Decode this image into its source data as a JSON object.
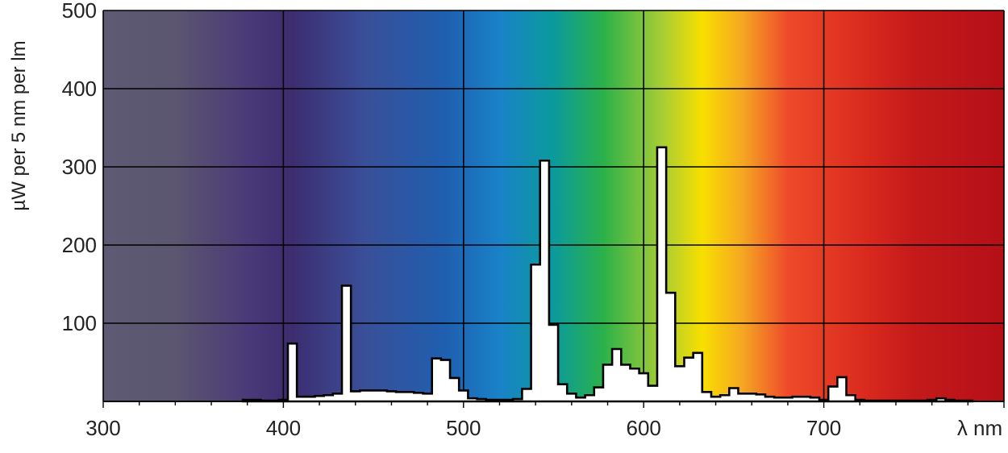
{
  "chart_data": {
    "type": "area",
    "title": "",
    "xlabel": "λ nm",
    "ylabel": "µW per 5 nm per lm",
    "xlim": [
      300,
      800
    ],
    "ylim": [
      0,
      500
    ],
    "x_ticks": [
      "300",
      "400",
      "500",
      "600",
      "700"
    ],
    "y_ticks": [
      "100",
      "200",
      "300",
      "400",
      "500"
    ],
    "grid": true,
    "series": [
      {
        "step_width_nm": 5,
        "fill": "#ffffff",
        "stroke": "#000000",
        "points": [
          [
            380,
            2
          ],
          [
            385,
            2
          ],
          [
            390,
            1
          ],
          [
            395,
            1
          ],
          [
            400,
            2
          ],
          [
            405,
            74
          ],
          [
            410,
            6
          ],
          [
            415,
            6
          ],
          [
            420,
            7
          ],
          [
            425,
            8
          ],
          [
            430,
            10
          ],
          [
            435,
            148
          ],
          [
            440,
            13
          ],
          [
            445,
            14
          ],
          [
            450,
            14
          ],
          [
            455,
            14
          ],
          [
            460,
            13
          ],
          [
            465,
            12
          ],
          [
            470,
            12
          ],
          [
            475,
            11
          ],
          [
            480,
            10
          ],
          [
            485,
            55
          ],
          [
            490,
            53
          ],
          [
            495,
            30
          ],
          [
            500,
            14
          ],
          [
            505,
            4
          ],
          [
            510,
            3
          ],
          [
            515,
            2
          ],
          [
            520,
            2
          ],
          [
            525,
            2
          ],
          [
            530,
            3
          ],
          [
            535,
            16
          ],
          [
            540,
            175
          ],
          [
            545,
            308
          ],
          [
            550,
            98
          ],
          [
            555,
            22
          ],
          [
            560,
            10
          ],
          [
            565,
            5
          ],
          [
            570,
            8
          ],
          [
            575,
            18
          ],
          [
            580,
            47
          ],
          [
            585,
            67
          ],
          [
            590,
            47
          ],
          [
            595,
            42
          ],
          [
            600,
            36
          ],
          [
            605,
            20
          ],
          [
            610,
            325
          ],
          [
            615,
            139
          ],
          [
            620,
            45
          ],
          [
            625,
            56
          ],
          [
            630,
            62
          ],
          [
            635,
            12
          ],
          [
            640,
            6
          ],
          [
            645,
            8
          ],
          [
            650,
            17
          ],
          [
            655,
            10
          ],
          [
            660,
            10
          ],
          [
            665,
            9
          ],
          [
            670,
            6
          ],
          [
            675,
            5
          ],
          [
            680,
            5
          ],
          [
            685,
            6
          ],
          [
            690,
            6
          ],
          [
            695,
            5
          ],
          [
            700,
            2
          ],
          [
            705,
            19
          ],
          [
            710,
            31
          ],
          [
            715,
            8
          ],
          [
            720,
            2
          ],
          [
            725,
            1
          ],
          [
            730,
            1
          ],
          [
            735,
            1
          ],
          [
            740,
            1
          ],
          [
            745,
            1
          ],
          [
            750,
            1
          ],
          [
            755,
            1
          ],
          [
            760,
            2
          ],
          [
            765,
            4
          ],
          [
            770,
            2
          ],
          [
            775,
            1
          ],
          [
            780,
            1
          ]
        ]
      }
    ],
    "background": "visible spectrum gradient"
  }
}
